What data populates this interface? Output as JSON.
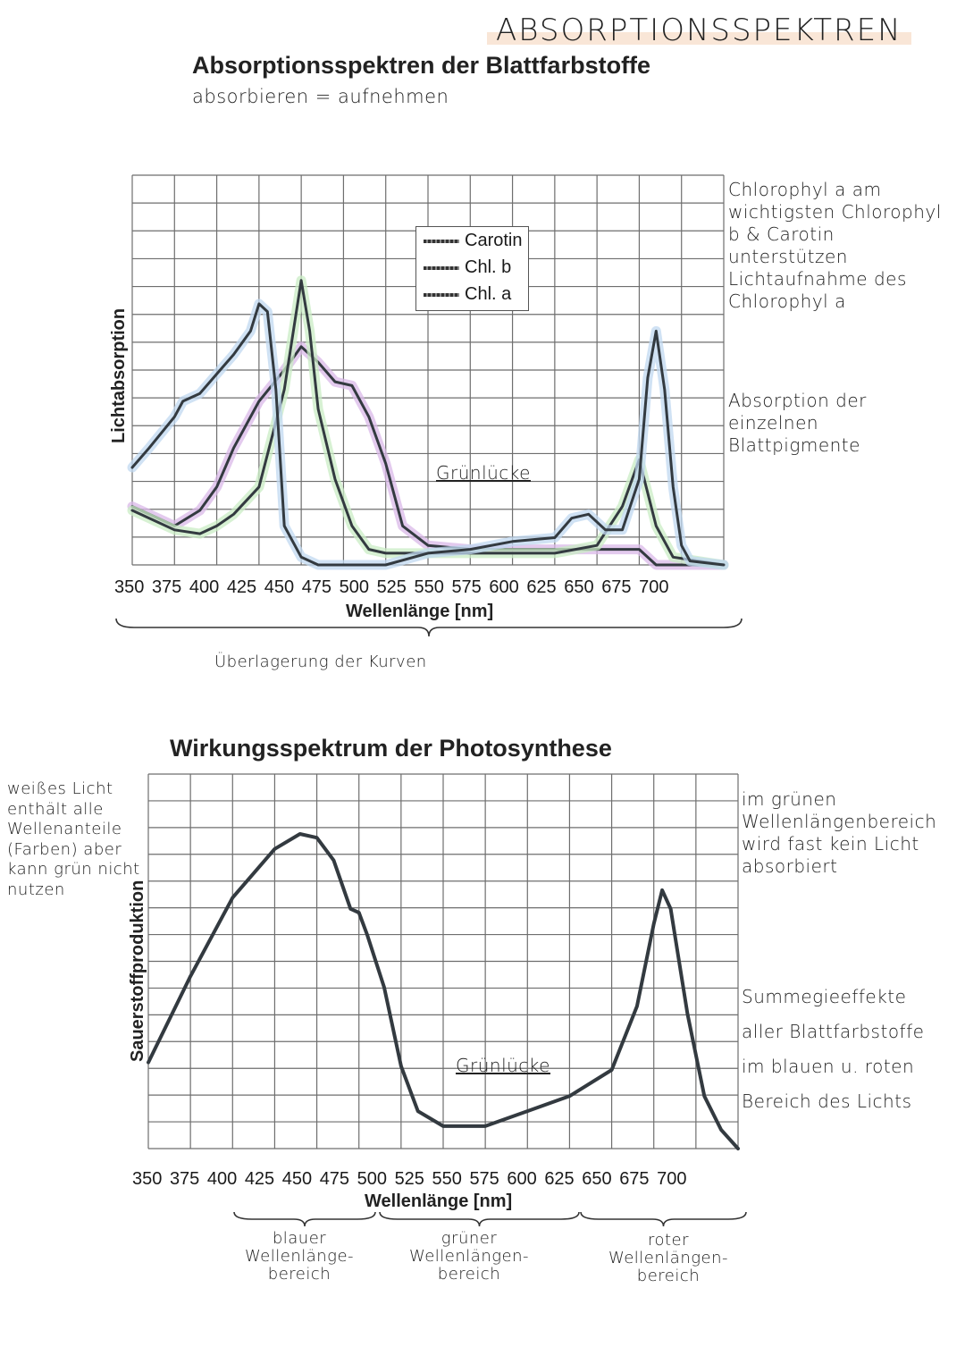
{
  "page": {
    "heading": "ABSORPTIONSSPEKTREN"
  },
  "notes": {
    "absorb": "absorbieren = aufnehmen",
    "right_1": "Chlorophyl a am wichtigsten Chlorophyl b & Carotin unterstützen Lichtaufnahme des Chlorophyl a",
    "right_2": "Absorption der einzelnen Blattpigmente",
    "overlay": "Überlagerung der Kurven",
    "left": "weißes Licht enthält alle Wellenanteile (Farben) aber kann grün nicht nutzen",
    "right_3": "im grünen Wellenlängenbereich wird fast kein Licht absorbiert",
    "right_4": "Summegieeffekte aller Blattfarbstoffe im blauen u. roten Bereich des Lichts",
    "range_blue": "blauer Wellenlänge-bereich",
    "range_green": "grüner Wellenlängen-bereich",
    "range_red": "roter Wellenlängen-bereich"
  },
  "colors": {
    "curve": "#333a40",
    "highlight_carotin": "#d9b8e8",
    "highlight_chlb": "#c9ecc4",
    "highlight_chla": "#c0d8f0",
    "grid": "#6e6e6e",
    "heading_highlight": "#f6dcc6"
  },
  "chart_data": [
    {
      "type": "line",
      "title": "Absorptionsspektren der Blattfarbstoffe",
      "xlabel": "Wellenlänge [nm]",
      "ylabel": "Lichtabsorption",
      "x_ticks": [
        "350",
        "375",
        "400",
        "425",
        "450",
        "475",
        "500",
        "525",
        "550",
        "575",
        "600",
        "625",
        "650",
        "675",
        "700"
      ],
      "xlim": [
        350,
        700
      ],
      "ylim": [
        0,
        1
      ],
      "annotation": "Grünlücke",
      "legend": {
        "placement": "top-center",
        "items": [
          "Carotin",
          "Chl. b",
          "Chl. a"
        ]
      },
      "grid": true,
      "series": [
        {
          "name": "Carotin",
          "x": [
            350,
            360,
            375,
            390,
            400,
            410,
            425,
            440,
            450,
            460,
            470,
            480,
            490,
            500,
            510,
            525,
            550,
            575,
            600,
            625,
            650,
            660,
            700
          ],
          "y": [
            0.15,
            0.13,
            0.1,
            0.14,
            0.2,
            0.3,
            0.42,
            0.5,
            0.56,
            0.52,
            0.47,
            0.46,
            0.38,
            0.26,
            0.1,
            0.05,
            0.04,
            0.04,
            0.04,
            0.04,
            0.04,
            0.0,
            0.0
          ]
        },
        {
          "name": "Chl. b",
          "x": [
            350,
            375,
            390,
            400,
            410,
            425,
            440,
            450,
            455,
            460,
            470,
            480,
            490,
            500,
            525,
            550,
            575,
            600,
            625,
            640,
            650,
            660,
            670,
            700
          ],
          "y": [
            0.14,
            0.09,
            0.08,
            0.1,
            0.13,
            0.2,
            0.45,
            0.73,
            0.6,
            0.4,
            0.22,
            0.1,
            0.04,
            0.03,
            0.03,
            0.03,
            0.03,
            0.03,
            0.05,
            0.15,
            0.27,
            0.1,
            0.02,
            0.0
          ]
        },
        {
          "name": "Chl. a",
          "x": [
            350,
            360,
            375,
            380,
            390,
            400,
            410,
            420,
            425,
            430,
            435,
            440,
            450,
            460,
            475,
            500,
            525,
            550,
            575,
            600,
            610,
            620,
            630,
            640,
            650,
            655,
            660,
            665,
            670,
            675,
            680,
            700
          ],
          "y": [
            0.25,
            0.3,
            0.38,
            0.42,
            0.44,
            0.49,
            0.54,
            0.6,
            0.67,
            0.65,
            0.45,
            0.1,
            0.02,
            0.0,
            0.0,
            0.0,
            0.03,
            0.04,
            0.06,
            0.07,
            0.12,
            0.13,
            0.09,
            0.09,
            0.22,
            0.48,
            0.6,
            0.45,
            0.2,
            0.05,
            0.01,
            0.0
          ]
        }
      ]
    },
    {
      "type": "line",
      "title": "Wirkungsspektrum der Photosynthese",
      "xlabel": "Wellenlänge [nm]",
      "ylabel": "Sauerstoffproduktion",
      "x_ticks": [
        "350",
        "375",
        "400",
        "425",
        "450",
        "475",
        "500",
        "525",
        "550",
        "575",
        "600",
        "625",
        "650",
        "675",
        "700"
      ],
      "xlim": [
        350,
        700
      ],
      "ylim": [
        0,
        1
      ],
      "annotation": "Grünlücke",
      "grid": true,
      "series": [
        {
          "x": [
            350,
            375,
            400,
            425,
            440,
            450,
            460,
            470,
            475,
            480,
            490,
            500,
            510,
            525,
            550,
            575,
            600,
            625,
            640,
            650,
            655,
            660,
            670,
            680,
            690,
            700
          ],
          "y": [
            0.23,
            0.46,
            0.67,
            0.8,
            0.84,
            0.83,
            0.77,
            0.64,
            0.63,
            0.57,
            0.43,
            0.22,
            0.1,
            0.06,
            0.06,
            0.1,
            0.14,
            0.21,
            0.38,
            0.6,
            0.69,
            0.64,
            0.36,
            0.14,
            0.05,
            0.0
          ]
        }
      ]
    }
  ]
}
